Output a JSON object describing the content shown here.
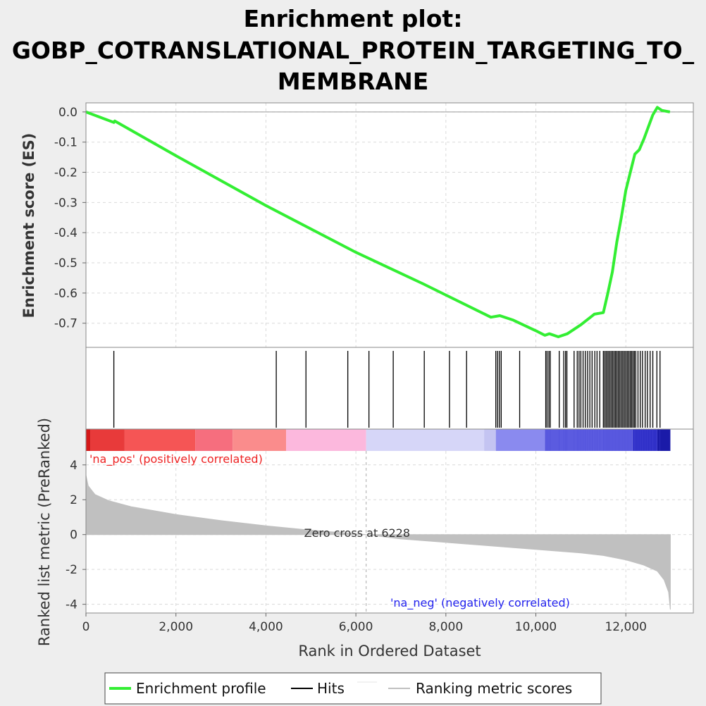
{
  "title_lines": [
    "Enrichment plot:",
    "GOBP_COTRANSLATIONAL_PROTEIN_TARGETING_TO_",
    "MEMBRANE"
  ],
  "chart_data": {
    "type": "line",
    "x_label": "Rank in Ordered Dataset",
    "x_range": [
      0,
      13500
    ],
    "x_ticks": [
      0,
      2000,
      4000,
      6000,
      8000,
      10000,
      12000
    ],
    "x_tick_labels": [
      "0",
      "2,000",
      "4,000",
      "6,000",
      "8,000",
      "10,000",
      "12,000"
    ],
    "grid": true,
    "legend_position": "bottom",
    "es_panel": {
      "ylabel": "Enrichment score (ES)",
      "ylim": [
        -0.78,
        0.03
      ],
      "y_ticks": [
        0.0,
        -0.1,
        -0.2,
        -0.3,
        -0.4,
        -0.5,
        -0.6,
        -0.7
      ],
      "y_tick_labels": [
        "0.0",
        "-0.1",
        "-0.2",
        "-0.3",
        "-0.4",
        "-0.5",
        "-0.6",
        "-0.7"
      ],
      "series": [
        {
          "name": "Enrichment profile",
          "color": "#33ee33",
          "x": [
            0,
            620,
            640,
            2000,
            4000,
            6000,
            7500,
            9000,
            9200,
            9500,
            10000,
            10200,
            10300,
            10500,
            10700,
            11000,
            11300,
            11500,
            11600,
            11700,
            11800,
            11900,
            12000,
            12100,
            12200,
            12300,
            12400,
            12500,
            12600,
            12700,
            12800,
            12980
          ],
          "y": [
            0.0,
            -0.035,
            -0.03,
            -0.145,
            -0.31,
            -0.465,
            -0.57,
            -0.68,
            -0.675,
            -0.69,
            -0.725,
            -0.74,
            -0.735,
            -0.745,
            -0.735,
            -0.705,
            -0.67,
            -0.665,
            -0.6,
            -0.53,
            -0.43,
            -0.35,
            -0.26,
            -0.2,
            -0.14,
            -0.125,
            -0.09,
            -0.05,
            -0.01,
            0.015,
            0.005,
            0.0
          ]
        }
      ]
    },
    "hits": {
      "name": "Hits",
      "color": "#000000",
      "positions": [
        620,
        4230,
        4890,
        5820,
        6290,
        6830,
        7520,
        8080,
        8460,
        9110,
        9150,
        9190,
        9230,
        9640,
        10220,
        10250,
        10290,
        10320,
        10520,
        10620,
        10660,
        10690,
        10850,
        10920,
        10960,
        11000,
        11050,
        11100,
        11150,
        11200,
        11250,
        11310,
        11360,
        11420,
        11500,
        11530,
        11560,
        11590,
        11620,
        11650,
        11680,
        11710,
        11740,
        11770,
        11800,
        11830,
        11860,
        11890,
        11920,
        11950,
        11980,
        12010,
        12040,
        12070,
        12100,
        12130,
        12160,
        12190,
        12220,
        12270,
        12320,
        12370,
        12430,
        12480,
        12540,
        12600,
        12690,
        12760
      ]
    },
    "color_bar": {
      "segments": [
        {
          "x0": 0,
          "x1": 100,
          "color": "#d41818"
        },
        {
          "x0": 100,
          "x1": 860,
          "color": "#e83a3a"
        },
        {
          "x0": 860,
          "x1": 2430,
          "color": "#f55555"
        },
        {
          "x0": 2430,
          "x1": 3260,
          "color": "#f66e7e"
        },
        {
          "x0": 3260,
          "x1": 4450,
          "color": "#fa8c8c"
        },
        {
          "x0": 4450,
          "x1": 6228,
          "color": "#fcb8dd"
        },
        {
          "x0": 6228,
          "x1": 8850,
          "color": "#d6d6f8"
        },
        {
          "x0": 8850,
          "x1": 9110,
          "color": "#c4c4f2"
        },
        {
          "x0": 9110,
          "x1": 10200,
          "color": "#8a8aef"
        },
        {
          "x0": 10200,
          "x1": 12150,
          "color": "#5b5be0"
        },
        {
          "x0": 12150,
          "x1": 12700,
          "color": "#3030c8"
        },
        {
          "x0": 12700,
          "x1": 12990,
          "color": "#1a1aa8"
        }
      ]
    },
    "metric_panel": {
      "ylabel": "Ranked list  metric (PreRanked)",
      "ylim": [
        -4.5,
        4.8
      ],
      "y_ticks": [
        4,
        2,
        0,
        -2,
        -4
      ],
      "y_tick_labels": [
        "4",
        "2",
        "0",
        "-2",
        "-4"
      ],
      "series": [
        {
          "name": "Ranking metric scores",
          "color": "#c0c0c0",
          "x": [
            0,
            50,
            200,
            500,
            1000,
            2000,
            3000,
            4000,
            5000,
            6228,
            7000,
            8000,
            9000,
            10000,
            11000,
            11500,
            12000,
            12400,
            12700,
            12850,
            12950,
            12990
          ],
          "y": [
            3.4,
            2.8,
            2.3,
            1.95,
            1.6,
            1.15,
            0.8,
            0.5,
            0.25,
            0.0,
            -0.25,
            -0.45,
            -0.65,
            -0.85,
            -1.05,
            -1.2,
            -1.45,
            -1.75,
            -2.1,
            -2.6,
            -3.3,
            -4.3
          ]
        }
      ],
      "zero_cross": 6228,
      "zero_cross_label": "Zero cross at 6228",
      "pos_label": "'na_pos' (positively correlated)",
      "neg_label": "'na_neg' (negatively correlated)",
      "pos_color": "#ee2222",
      "neg_color": "#2222ee"
    }
  },
  "legend": {
    "items": [
      {
        "label": "Enrichment profile",
        "color": "#33ee33",
        "kind": "thick"
      },
      {
        "label": "Hits",
        "color": "#000000",
        "kind": "thin"
      },
      {
        "label": "Ranking metric scores",
        "color": "#c0c0c0",
        "kind": "thin"
      }
    ]
  }
}
